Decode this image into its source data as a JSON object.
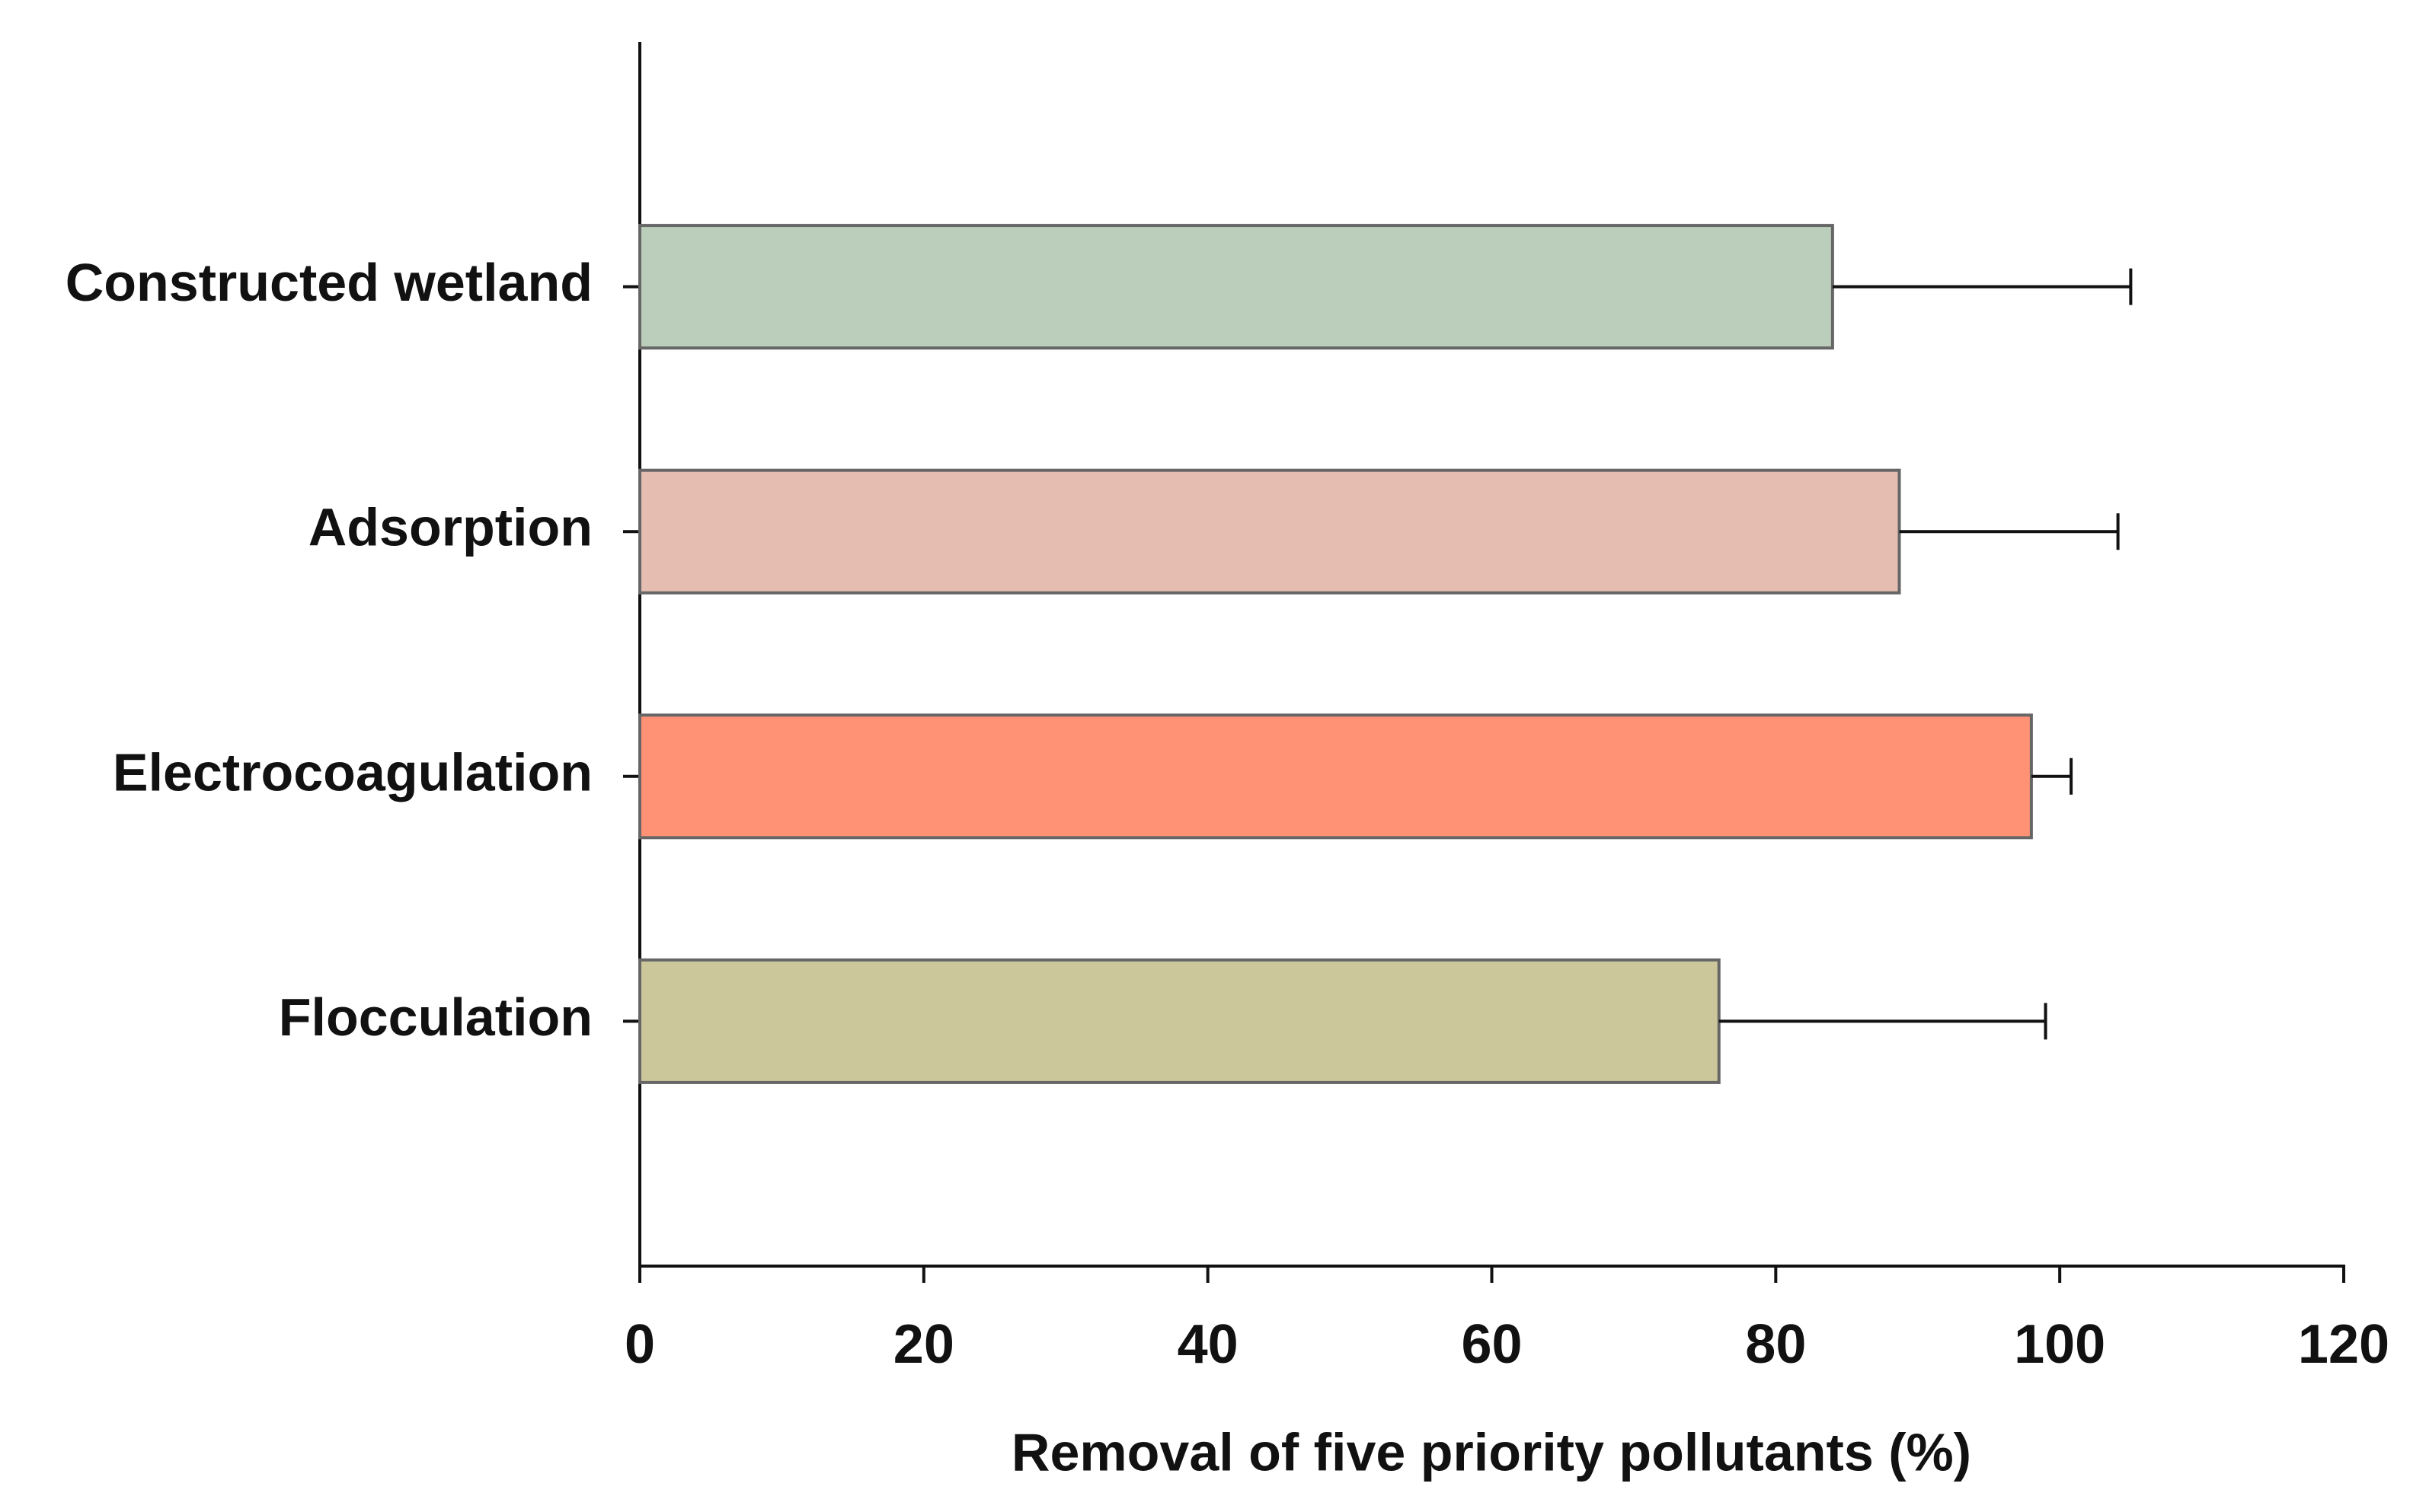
{
  "chart_data": {
    "type": "barh",
    "categories": [
      "Constructed wetland",
      "Adsorption",
      "Electrocoagulation",
      "Flocculation"
    ],
    "values": [
      84,
      88.7,
      98,
      76
    ],
    "errors": [
      21,
      15.4,
      2.8,
      23
    ],
    "colors": [
      "#bbcdbb",
      "#e5bdb1",
      "#ff9175",
      "#cbc79b"
    ],
    "x_label": "Removal of five priority pollutants (%)",
    "xlim": [
      0,
      120
    ],
    "xticks": [
      0,
      20,
      40,
      60,
      80,
      100,
      120
    ]
  }
}
